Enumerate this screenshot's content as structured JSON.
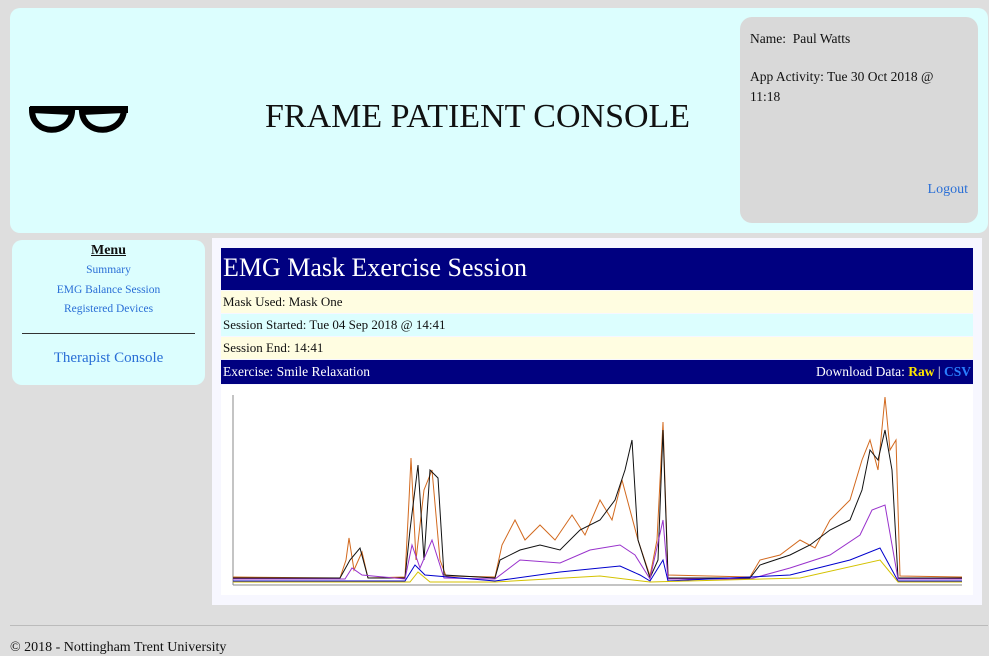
{
  "header": {
    "title": "FRAME PATIENT CONSOLE"
  },
  "user": {
    "name_label": "Name:",
    "name": "Paul Watts",
    "activity": "App Activity: Tue 30 Oct 2018 @ 11:18",
    "logout": "Logout"
  },
  "menu": {
    "title": "Menu",
    "items": [
      "Summary",
      "EMG Balance Session",
      "Registered Devices"
    ],
    "therapist": "Therapist Console"
  },
  "session": {
    "title": "EMG Mask Exercise Session",
    "rows": [
      "Mask Used:  Mask One",
      "Session Started: Tue 04 Sep 2018 @ 14:41",
      "Session End: 14:41"
    ],
    "exercise": "Exercise: Smile Relaxation",
    "download_label": "Download Data:",
    "raw": "Raw",
    "separator": "|",
    "csv": "CSV"
  },
  "footer": {
    "text": "© 2018 - Nottingham Trent University"
  }
}
